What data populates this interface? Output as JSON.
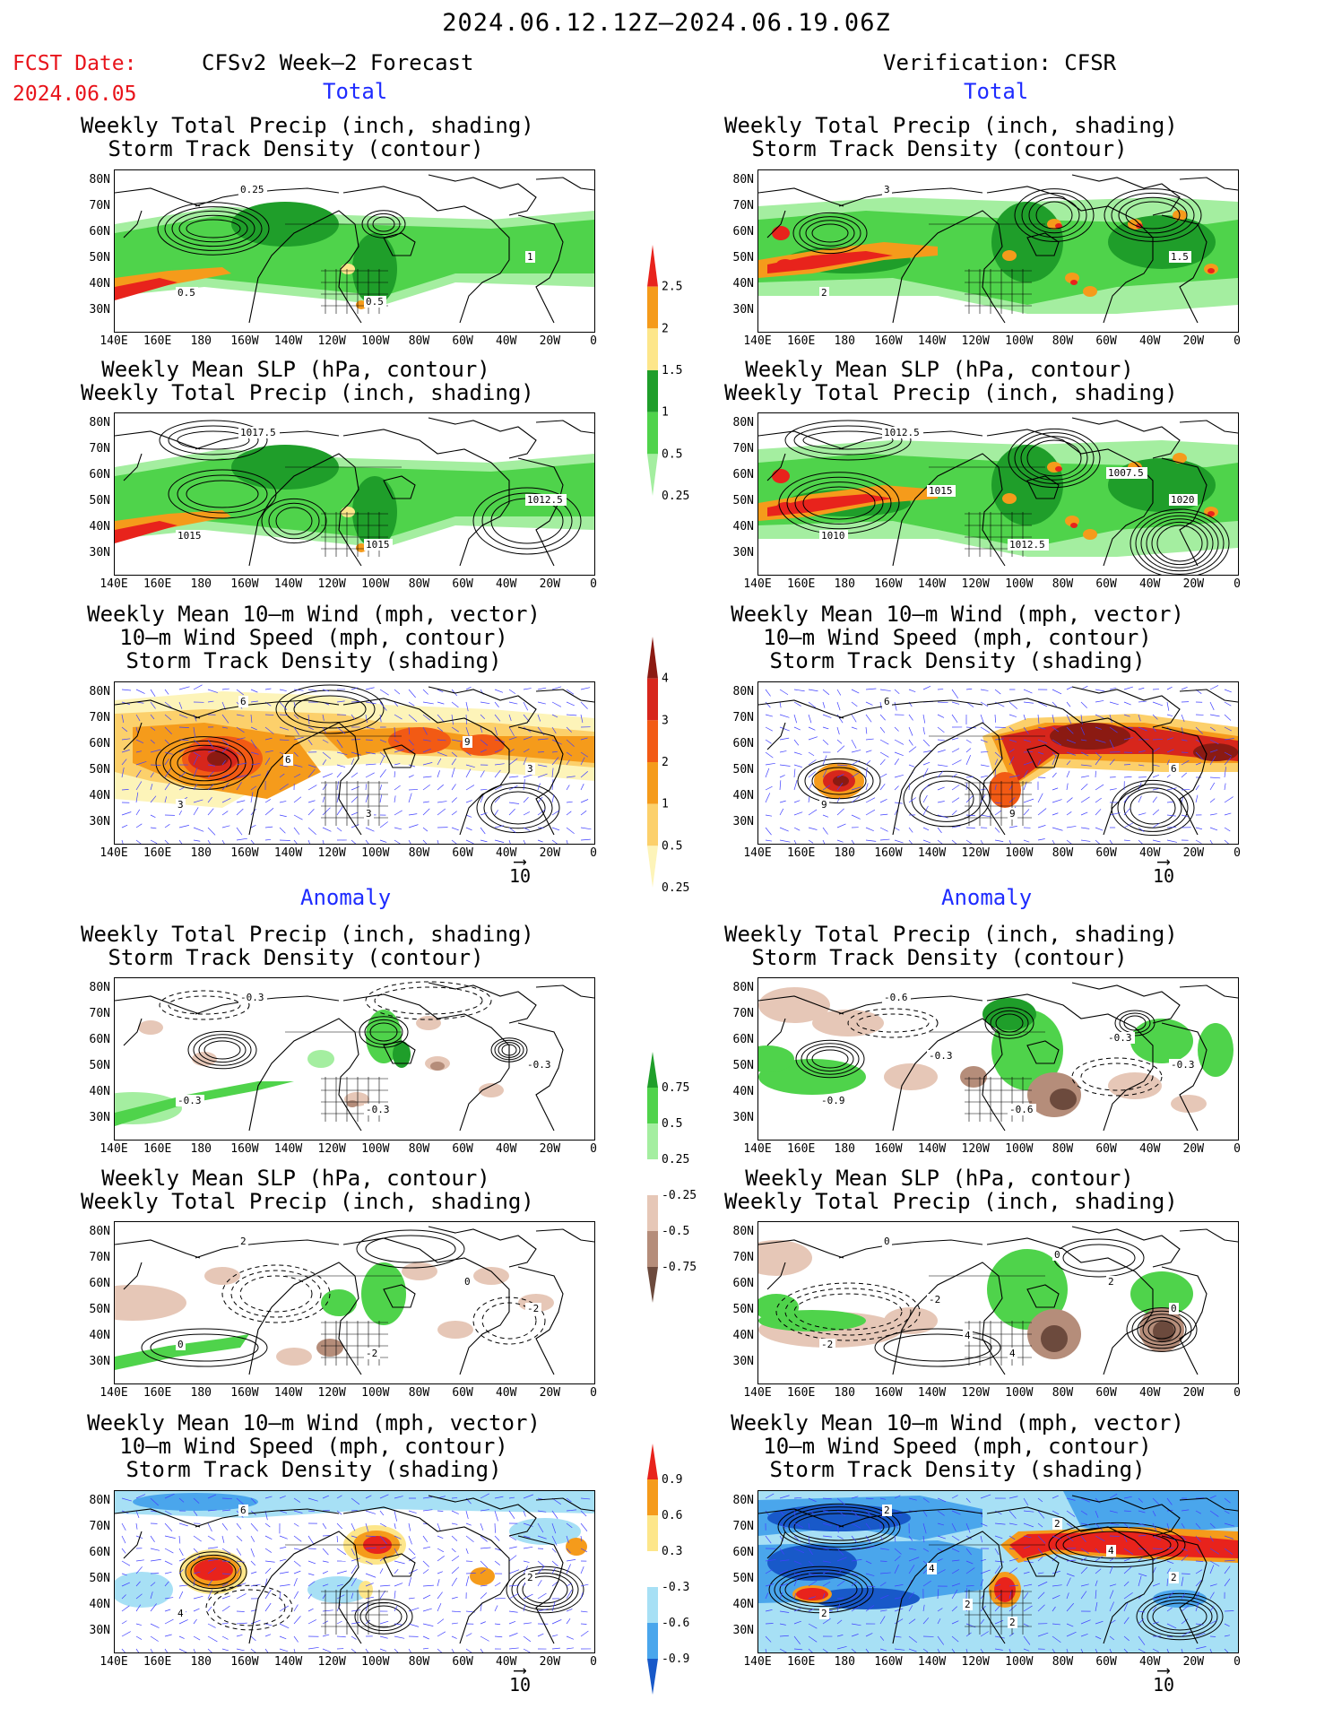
{
  "header": {
    "time_range": "2024.06.12.12Z—2024.06.19.06Z",
    "fcst_label": "FCST Date:",
    "fcst_date": "2024.06.05",
    "forecast_label": "CFSv2 Week—2 Forecast",
    "verification_label": "Verification: CFSR"
  },
  "sections": {
    "total": "Total",
    "anomaly": "Anomaly"
  },
  "titles": {
    "precip_storm": [
      "Weekly Total Precip (inch, shading)",
      "Storm Track Density (contour)"
    ],
    "slp_precip": [
      "Weekly Mean SLP (hPa, contour)",
      "Weekly Total Precip (inch, shading)"
    ],
    "wind_storm": [
      "Weekly Mean 10—m Wind (mph, vector)",
      "10—m Wind Speed (mph, contour)",
      "Storm Track Density (shading)"
    ]
  },
  "axes": {
    "lat_ticks": [
      "80N",
      "70N",
      "60N",
      "50N",
      "40N",
      "30N"
    ],
    "lon_ticks": [
      "140E",
      "160E",
      "180",
      "160W",
      "140W",
      "120W",
      "100W",
      "80W",
      "60W",
      "40W",
      "20W",
      "0"
    ]
  },
  "vector_ref": "10",
  "contour_labels": {
    "fc_total_precip": [
      "0.25",
      "0.5",
      "1",
      "0.5"
    ],
    "vf_total_precip": [
      "3",
      "2",
      "1.5"
    ],
    "fc_total_slp": [
      "1017.5",
      "1015",
      "1012.5",
      "1015"
    ],
    "vf_total_slp": [
      "1012.5",
      "1010",
      "1020",
      "1012.5",
      "1007.5",
      "1015"
    ],
    "fc_total_wind": [
      "6",
      "3",
      "3",
      "3",
      "9",
      "6"
    ],
    "vf_total_wind": [
      "6",
      "9",
      "6",
      "9"
    ],
    "fc_anom_precip": [
      "-0.3",
      "-0.3",
      "-0.3",
      "-0.3"
    ],
    "vf_anom_precip": [
      "-0.6",
      "-0.9",
      "-0.3",
      "-0.6",
      "-0.3",
      "-0.3"
    ],
    "fc_anom_slp": [
      "2",
      "0",
      "-2",
      "-2",
      "0"
    ],
    "vf_anom_slp": [
      "0",
      "-2",
      "0",
      "4",
      "2",
      "-2",
      "0",
      "4"
    ],
    "fc_anom_wind": [
      "6",
      "4",
      "2"
    ],
    "vf_anom_wind": [
      "2",
      "2",
      "2",
      "2",
      "4",
      "4",
      "2",
      "2"
    ]
  },
  "colorbars": {
    "precip_total": {
      "labels": [
        "2.5",
        "2",
        "1.5",
        "1",
        "0.5",
        "0.25"
      ],
      "colors": [
        "#e8231c",
        "#f59b1b",
        "#fde68a",
        "#1f9e2a",
        "#4fd34b",
        "#a4eea0"
      ]
    },
    "storm_total": {
      "labels": [
        "4",
        "3",
        "2",
        "1",
        "0.5",
        "0.25"
      ],
      "colors": [
        "#8b1a12",
        "#d7261c",
        "#f25a14",
        "#f59b1b",
        "#fcd06b",
        "#fdf4b9"
      ]
    },
    "precip_anom": {
      "labels": [
        "0.75",
        "0.5",
        "0.25",
        "-0.25",
        "-0.5",
        "-0.75"
      ],
      "colors": [
        "#1f9e2a",
        "#4fd34b",
        "#a4eea0",
        "#ffffff",
        "#e6c7b7",
        "#b58d7a",
        "#6c4a3d"
      ]
    },
    "storm_anom": {
      "labels": [
        "0.9",
        "0.6",
        "0.3",
        "-0.3",
        "-0.6",
        "-0.9"
      ],
      "colors": [
        "#e8231c",
        "#f59b1b",
        "#fde68a",
        "#ffffff",
        "#a7e0f5",
        "#4aa6ec",
        "#1859c9"
      ]
    }
  },
  "colors": {
    "fcst_text": "#e8141b",
    "section_text": "#1e2bff",
    "vector": "#4040ff"
  }
}
